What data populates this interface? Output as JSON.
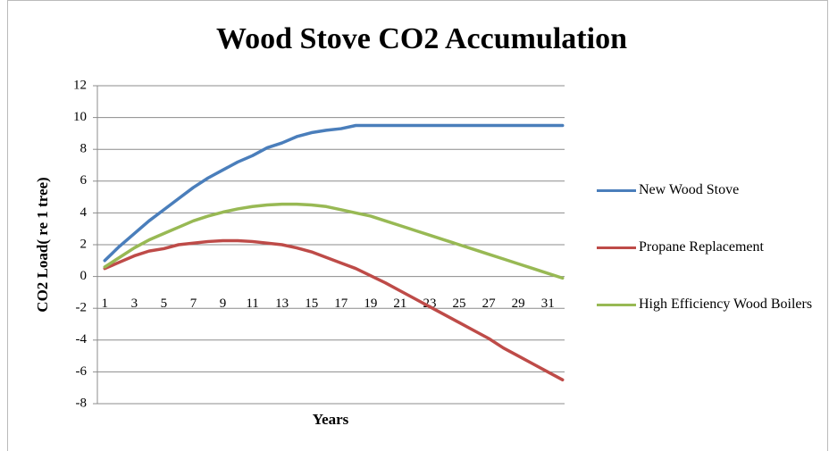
{
  "chart_data": {
    "type": "line",
    "title": "Wood Stove CO2 Accumulation",
    "x_label": "Years",
    "y_label": "CO2 Load( re 1 tree)",
    "categories": [
      1,
      null,
      3,
      null,
      5,
      null,
      7,
      null,
      9,
      null,
      11,
      null,
      13,
      null,
      15,
      null,
      17,
      null,
      19,
      null,
      21,
      null,
      23,
      null,
      25,
      null,
      27,
      null,
      29,
      null,
      31,
      null
    ],
    "series": [
      {
        "name": "New Wood Stove",
        "color": "#4a7ebb",
        "values": [
          1.0,
          1.9,
          2.7,
          3.5,
          4.2,
          4.9,
          5.6,
          6.2,
          6.7,
          7.2,
          7.6,
          8.1,
          8.4,
          8.8,
          9.05,
          9.2,
          9.3,
          9.5,
          9.5,
          9.5,
          9.5,
          9.5,
          9.5,
          9.5,
          9.5,
          9.5,
          9.5,
          9.5,
          9.5,
          9.5,
          9.5,
          9.5
        ]
      },
      {
        "name": "Propane  Replacement",
        "color": "#be4b48",
        "values": [
          0.5,
          0.9,
          1.3,
          1.6,
          1.75,
          2.0,
          2.1,
          2.2,
          2.25,
          2.25,
          2.2,
          2.1,
          2.0,
          1.8,
          1.55,
          1.2,
          0.85,
          0.5,
          0.05,
          -0.4,
          -0.9,
          -1.4,
          -1.9,
          -2.4,
          -2.9,
          -3.4,
          -3.9,
          -4.5,
          -5.0,
          -5.5,
          -6.0,
          -6.5
        ]
      },
      {
        "name": "High Efficiency Wood Boilers",
        "color": "#98b954",
        "values": [
          0.6,
          1.2,
          1.8,
          2.3,
          2.7,
          3.1,
          3.5,
          3.8,
          4.05,
          4.25,
          4.4,
          4.5,
          4.55,
          4.55,
          4.5,
          4.4,
          4.2,
          4.0,
          3.8,
          3.5,
          3.2,
          2.9,
          2.6,
          2.3,
          2.0,
          1.7,
          1.4,
          1.1,
          0.8,
          0.5,
          0.2,
          -0.1
        ]
      }
    ],
    "ylim": [
      -8,
      12
    ],
    "yticks": [
      -8,
      -6,
      -4,
      -2,
      0,
      2,
      4,
      6,
      8,
      10,
      12
    ],
    "grid": true,
    "legend": "right"
  }
}
